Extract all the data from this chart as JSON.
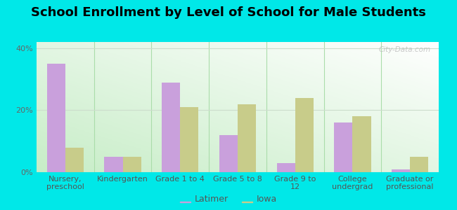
{
  "title": "School Enrollment by Level of School for Male Students",
  "categories": [
    "Nursery,\npreschool",
    "Kindergarten",
    "Grade 1 to 4",
    "Grade 5 to 8",
    "Grade 9 to\n12",
    "College\nundergrad",
    "Graduate or\nprofessional"
  ],
  "latimer": [
    35,
    5,
    29,
    12,
    3,
    16,
    1
  ],
  "iowa": [
    8,
    5,
    21,
    22,
    24,
    18,
    5
  ],
  "latimer_color": "#c9a0dc",
  "iowa_color": "#c8cc8a",
  "bar_width": 0.32,
  "ylim": [
    0,
    42
  ],
  "yticks": [
    0,
    20,
    40
  ],
  "ytick_labels": [
    "0%",
    "20%",
    "40%"
  ],
  "background_color": "#00e8e8",
  "title_fontsize": 13,
  "tick_fontsize": 8,
  "legend_labels": [
    "Latimer",
    "Iowa"
  ],
  "watermark": "City-Data.com",
  "grad_top_color": "#ffffff",
  "grad_bottom_color": "#c8e8c8",
  "separator_color": "#aaddaa",
  "grid_color": "#ccddcc"
}
